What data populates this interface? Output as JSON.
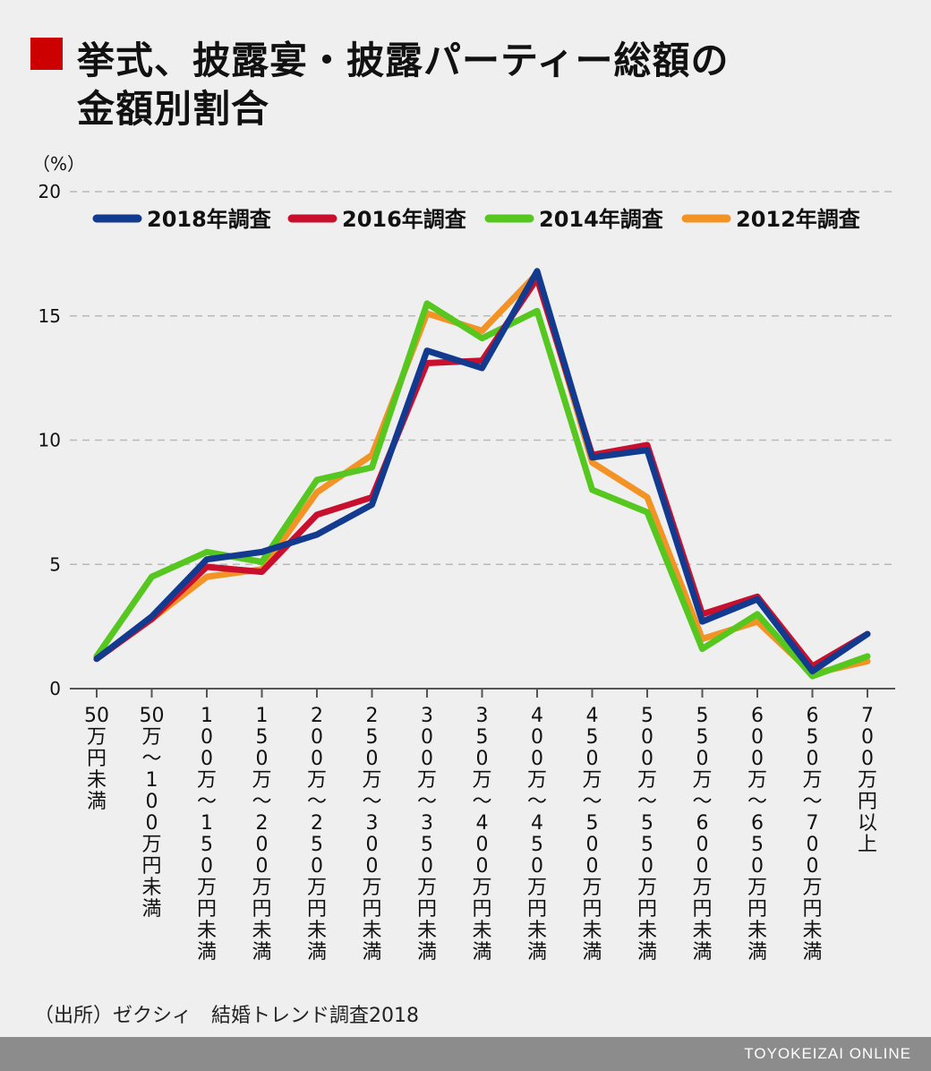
{
  "header": {
    "title_line_1": "挙式、披露宴・披露パーティー総額の",
    "title_line_2": "金額別割合"
  },
  "footer": {
    "source": "（出所）ゼクシィ　結婚トレンド調査2018",
    "brand": "TOYOKEIZAI ONLINE"
  },
  "colors": {
    "title_marker": "#cc0000",
    "background": "#efefef",
    "footer_bar": "#8c8c8c"
  },
  "chart_data": {
    "type": "line",
    "unit_label": "（%）",
    "ylim": [
      0,
      20
    ],
    "yticks": [
      0,
      5,
      10,
      15,
      20
    ],
    "grid": true,
    "legend_position": "top",
    "categories": [
      "50万円未満",
      "50万〜100万円未満",
      "100万〜150万円未満",
      "150万〜200万円未満",
      "200万〜250万円未満",
      "250万〜300万円未満",
      "300万〜350万円未満",
      "350万〜400万円未満",
      "400万〜450万円未満",
      "450万〜500万円未満",
      "500万〜550万円未満",
      "550万〜600万円未満",
      "600万〜650万円未満",
      "650万〜700万円未満",
      "700万円以上"
    ],
    "series": [
      {
        "name": "2012年調査",
        "color": "#f39325",
        "values": [
          1.2,
          2.8,
          4.5,
          4.8,
          7.9,
          9.4,
          15.1,
          14.4,
          16.7,
          9.1,
          7.7,
          2.0,
          2.7,
          0.6,
          1.1
        ]
      },
      {
        "name": "2014年調査",
        "color": "#55c71e",
        "values": [
          1.3,
          4.5,
          5.5,
          5.1,
          8.4,
          8.9,
          15.5,
          14.1,
          15.2,
          8.0,
          7.1,
          1.6,
          3.0,
          0.5,
          1.3
        ]
      },
      {
        "name": "2016年調査",
        "color": "#c8102e",
        "values": [
          1.2,
          2.8,
          4.9,
          4.7,
          7.0,
          7.7,
          13.1,
          13.2,
          16.5,
          9.4,
          9.8,
          3.0,
          3.7,
          0.9,
          2.2
        ]
      },
      {
        "name": "2018年調査",
        "color": "#123a8f",
        "values": [
          1.2,
          2.9,
          5.2,
          5.5,
          6.2,
          7.4,
          13.6,
          12.9,
          16.8,
          9.3,
          9.6,
          2.7,
          3.6,
          0.7,
          2.2
        ]
      }
    ],
    "legend_order": [
      "2018年調査",
      "2016年調査",
      "2014年調査",
      "2012年調査"
    ]
  }
}
